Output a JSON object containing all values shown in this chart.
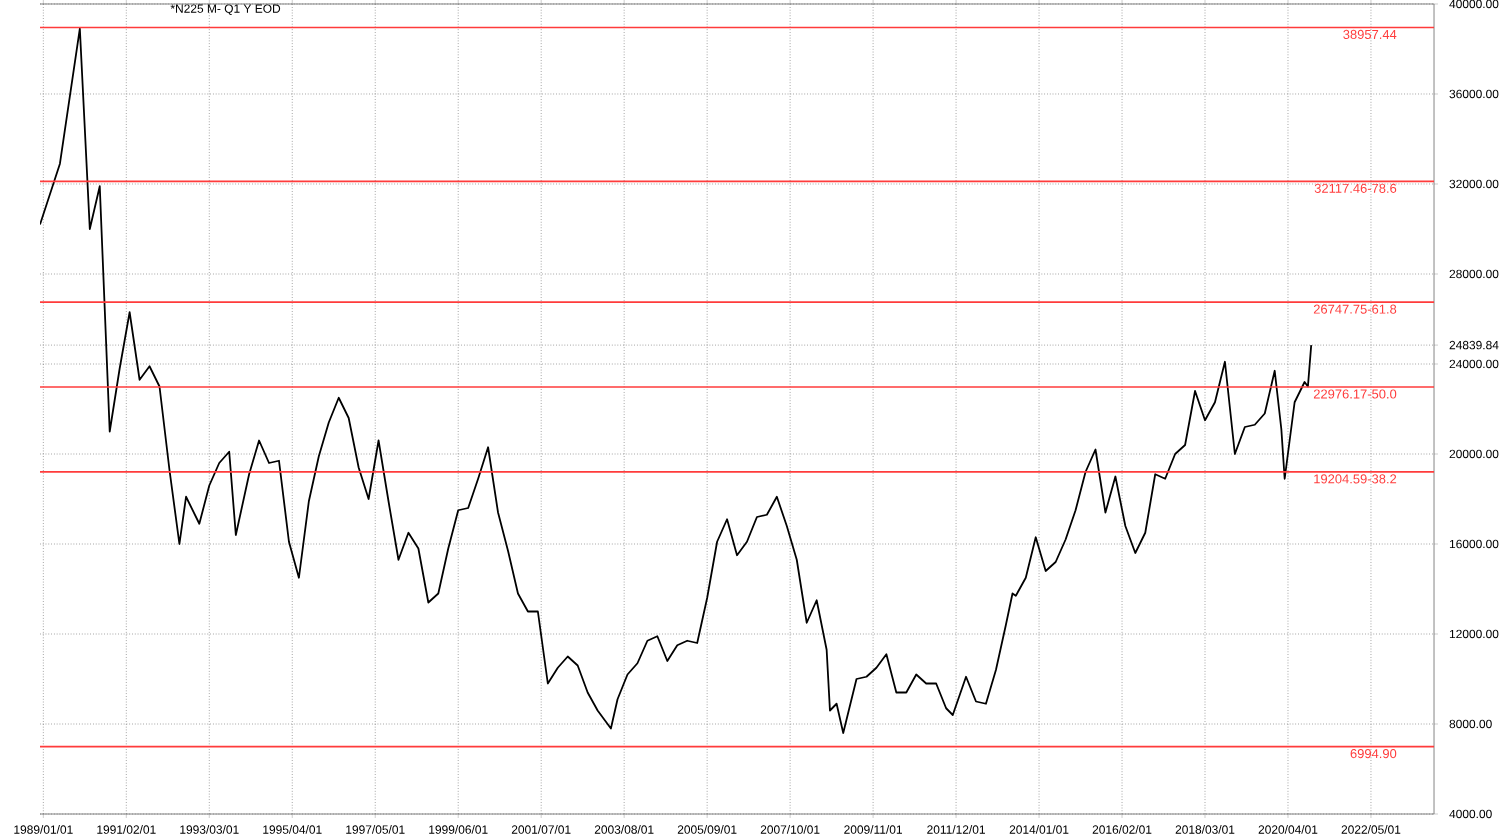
{
  "chart_data": {
    "type": "line",
    "title": "*N225 M- Q1 Y EOD",
    "x": [
      "1988-12",
      "1989-06",
      "1989-12",
      "1990-03",
      "1990-06",
      "1990-09",
      "1990-12",
      "1991-03",
      "1991-06",
      "1991-09",
      "1991-12",
      "1992-03",
      "1992-06",
      "1992-08",
      "1992-12",
      "1993-03",
      "1993-06",
      "1993-09",
      "1993-11",
      "1994-03",
      "1994-06",
      "1994-09",
      "1994-12",
      "1995-03",
      "1995-06",
      "1995-09",
      "1995-12",
      "1996-03",
      "1996-06",
      "1996-09",
      "1996-12",
      "1997-03",
      "1997-06",
      "1997-09",
      "1997-12",
      "1998-03",
      "1998-06",
      "1998-09",
      "1998-12",
      "1999-03",
      "1999-06",
      "1999-09",
      "1999-12",
      "2000-03",
      "2000-06",
      "2000-09",
      "2000-12",
      "2001-03",
      "2001-06",
      "2001-09",
      "2001-12",
      "2002-03",
      "2002-06",
      "2002-09",
      "2002-12",
      "2003-04",
      "2003-06",
      "2003-09",
      "2003-12",
      "2004-03",
      "2004-06",
      "2004-09",
      "2004-12",
      "2005-03",
      "2005-06",
      "2005-09",
      "2005-12",
      "2006-03",
      "2006-06",
      "2006-09",
      "2006-12",
      "2007-03",
      "2007-06",
      "2007-09",
      "2007-12",
      "2008-03",
      "2008-06",
      "2008-09",
      "2008-10",
      "2008-12",
      "2009-02",
      "2009-06",
      "2009-09",
      "2009-12",
      "2010-03",
      "2010-06",
      "2010-09",
      "2010-12",
      "2011-03",
      "2011-06",
      "2011-09",
      "2011-11",
      "2012-03",
      "2012-06",
      "2012-09",
      "2012-12",
      "2013-03",
      "2013-05",
      "2013-06",
      "2013-09",
      "2013-12",
      "2014-03",
      "2014-06",
      "2014-09",
      "2014-12",
      "2015-03",
      "2015-06",
      "2015-09",
      "2015-12",
      "2016-03",
      "2016-06",
      "2016-09",
      "2016-12",
      "2017-03",
      "2017-06",
      "2017-09",
      "2017-12",
      "2018-03",
      "2018-06",
      "2018-09",
      "2018-12",
      "2019-03",
      "2019-06",
      "2019-09",
      "2019-12",
      "2020-02",
      "2020-03",
      "2020-06",
      "2020-09",
      "2020-10",
      "2020-11"
    ],
    "series": [
      {
        "color": "#000000",
        "values": [
          30200,
          32900,
          38900,
          30000,
          31900,
          21000,
          23800,
          26300,
          23300,
          23900,
          23000,
          19300,
          16000,
          18100,
          16900,
          18600,
          19600,
          20100,
          16400,
          19100,
          20600,
          19600,
          19700,
          16100,
          14500,
          17900,
          19900,
          21400,
          22500,
          21600,
          19400,
          18000,
          20600,
          17900,
          15300,
          16500,
          15800,
          13400,
          13800,
          15800,
          17500,
          17600,
          18900,
          20300,
          17400,
          15700,
          13800,
          13000,
          13000,
          9800,
          10500,
          11000,
          10600,
          9400,
          8600,
          7800,
          9100,
          10200,
          10700,
          11700,
          11900,
          10800,
          11500,
          11700,
          11600,
          13600,
          16100,
          17100,
          15500,
          16100,
          17200,
          17300,
          18100,
          16800,
          15300,
          12500,
          13500,
          11300,
          8600,
          8900,
          7600,
          10000,
          10100,
          10500,
          11100,
          9400,
          9400,
          10200,
          9800,
          9800,
          8700,
          8400,
          10100,
          9000,
          8900,
          10400,
          12400,
          13800,
          13700,
          14500,
          16300,
          14800,
          15200,
          16200,
          17500,
          19200,
          20200,
          17400,
          19000,
          16800,
          15600,
          16500,
          19100,
          18900,
          20000,
          20400,
          22800,
          21500,
          22300,
          24100,
          20000,
          21200,
          21300,
          21800,
          23700,
          21100,
          18900,
          22300,
          23200,
          23000,
          24839.84
        ]
      }
    ],
    "xlim": [
      "1988-12",
      "2023-12"
    ],
    "xticks": [
      {
        "value": "1989-01-01",
        "label": "1989/01/01"
      },
      {
        "value": "1991-02-01",
        "label": "1991/02/01"
      },
      {
        "value": "1993-03-01",
        "label": "1993/03/01"
      },
      {
        "value": "1995-04-01",
        "label": "1995/04/01"
      },
      {
        "value": "1997-05-01",
        "label": "1997/05/01"
      },
      {
        "value": "1999-06-01",
        "label": "1999/06/01"
      },
      {
        "value": "2001-07-01",
        "label": "2001/07/01"
      },
      {
        "value": "2003-08-01",
        "label": "2003/08/01"
      },
      {
        "value": "2005-09-01",
        "label": "2005/09/01"
      },
      {
        "value": "2007-10-01",
        "label": "2007/10/01"
      },
      {
        "value": "2009-11-01",
        "label": "2009/11/01"
      },
      {
        "value": "2011-12-01",
        "label": "2011/12/01"
      },
      {
        "value": "2014-01-01",
        "label": "2014/01/01"
      },
      {
        "value": "2016-02-01",
        "label": "2016/02/01"
      },
      {
        "value": "2018-03-01",
        "label": "2018/03/01"
      },
      {
        "value": "2020-04-01",
        "label": "2020/04/01"
      },
      {
        "value": "2022-05-01",
        "label": "2022/05/01"
      }
    ],
    "ylim": [
      4000,
      40000
    ],
    "yticks": [
      {
        "value": 4000,
        "label": "4000.00"
      },
      {
        "value": 8000,
        "label": "8000.00"
      },
      {
        "value": 12000,
        "label": "12000.00"
      },
      {
        "value": 16000,
        "label": "16000.00"
      },
      {
        "value": 20000,
        "label": "20000.00"
      },
      {
        "value": 24000,
        "label": "24000.00"
      },
      {
        "value": 24839.84,
        "label": "24839.84"
      },
      {
        "value": 28000,
        "label": "28000.00"
      },
      {
        "value": 32000,
        "label": "32000.00"
      },
      {
        "value": 36000,
        "label": "36000.00"
      },
      {
        "value": 40000,
        "label": "40000.00"
      }
    ],
    "grid": true,
    "ref_lines": [
      {
        "axis": "y",
        "value": 38957.44,
        "label": "38957.44",
        "color": "#ff3b3b"
      },
      {
        "axis": "y",
        "value": 32117.46,
        "label": "32117.46-78.6",
        "color": "#ff3b3b"
      },
      {
        "axis": "y",
        "value": 26747.75,
        "label": "26747.75-61.8",
        "color": "#ff3b3b"
      },
      {
        "axis": "y",
        "value": 22976.17,
        "label": "22976.17-50.0",
        "color": "#ff3b3b"
      },
      {
        "axis": "y",
        "value": 19204.59,
        "label": "19204.59-38.2",
        "color": "#ff3b3b"
      },
      {
        "axis": "y",
        "value": 6994.9,
        "label": "6994.90",
        "color": "#ff3b3b"
      }
    ]
  }
}
